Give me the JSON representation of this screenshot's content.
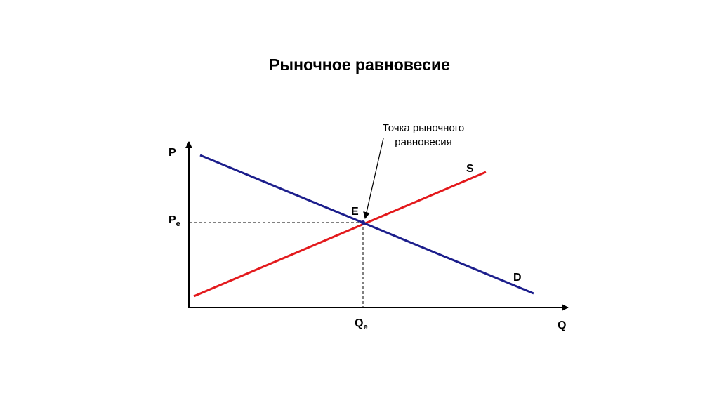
{
  "title": "Рыночное равновесие",
  "annotation": {
    "lines": [
      "Точка рыночного",
      "равновесия"
    ]
  },
  "axes": {
    "y_label": "P",
    "x_label": "Q"
  },
  "equilibrium": {
    "point_label": "E",
    "price_label": {
      "main": "P",
      "sub": "e"
    },
    "quantity_label": {
      "main": "Q",
      "sub": "e"
    }
  },
  "curves": {
    "supply_label": "S",
    "demand_label": "D"
  }
}
